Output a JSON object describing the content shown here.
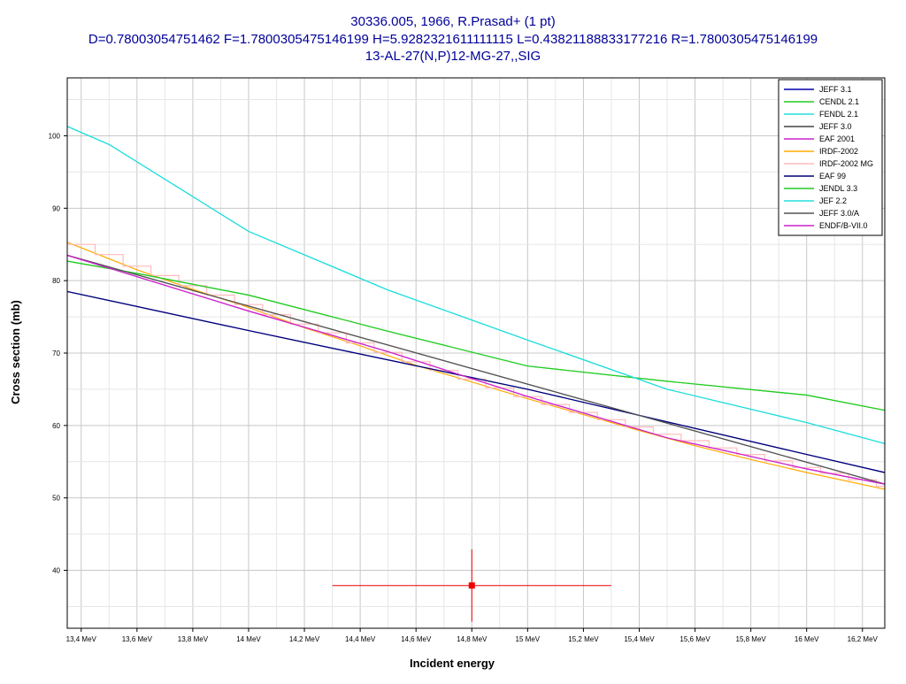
{
  "chart_data": {
    "type": "line",
    "title_lines": [
      "30336.005, 1966, R.Prasad+ (1 pt)",
      "D=0.78003054751462 F=1.7800305475146199 H=5.9282321611111115 L=0.43821188833177216 R=1.7800305475146199",
      "13-AL-27(N,P)12-MG-27,,SIG"
    ],
    "xlabel": "Incident energy",
    "ylabel": "Cross section (mb)",
    "xlim": [
      13.35,
      16.28
    ],
    "ylim": [
      32,
      108
    ],
    "x_unit": "MeV",
    "grid": true,
    "legend_position": "top-right",
    "x_ticks": [
      {
        "value": 13.4,
        "label": "13,4 MeV"
      },
      {
        "value": 13.6,
        "label": "13,6 MeV"
      },
      {
        "value": 13.8,
        "label": "13,8 MeV"
      },
      {
        "value": 14.0,
        "label": "14 MeV"
      },
      {
        "value": 14.2,
        "label": "14,2 MeV"
      },
      {
        "value": 14.4,
        "label": "14,4 MeV"
      },
      {
        "value": 14.6,
        "label": "14,6 MeV"
      },
      {
        "value": 14.8,
        "label": "14,8 MeV"
      },
      {
        "value": 15.0,
        "label": "15 MeV"
      },
      {
        "value": 15.2,
        "label": "15,2 MeV"
      },
      {
        "value": 15.4,
        "label": "15,4 MeV"
      },
      {
        "value": 15.6,
        "label": "15,6 MeV"
      },
      {
        "value": 15.8,
        "label": "15,8 MeV"
      },
      {
        "value": 16.0,
        "label": "16 MeV"
      },
      {
        "value": 16.2,
        "label": "16,2 MeV"
      }
    ],
    "y_ticks": [
      {
        "value": 40,
        "label": "40"
      },
      {
        "value": 50,
        "label": "50"
      },
      {
        "value": 60,
        "label": "60"
      },
      {
        "value": 70,
        "label": "70"
      },
      {
        "value": 80,
        "label": "80"
      },
      {
        "value": 90,
        "label": "90"
      },
      {
        "value": 100,
        "label": "100"
      }
    ],
    "series": [
      {
        "name": "JEFF 3.1",
        "color": "#0000aa",
        "step": false,
        "x": [
          13.35,
          14.0,
          15.0,
          16.0,
          16.28
        ],
        "y": [
          78.5,
          73.1,
          65.0,
          56.0,
          53.5
        ]
      },
      {
        "name": "CENDL 2.1",
        "color": "#22cc22",
        "step": false,
        "x": [
          13.35,
          13.6,
          14.0,
          14.5,
          15.0,
          15.5,
          16.0,
          16.28
        ],
        "y": [
          82.7,
          81.0,
          78.0,
          73.0,
          68.2,
          66.1,
          64.2,
          62.1
        ]
      },
      {
        "name": "FENDL 2.1",
        "color": "#22dddd",
        "step": false,
        "x": [
          13.35,
          13.5,
          14.0,
          14.5,
          15.0,
          15.5,
          16.0,
          16.28
        ],
        "y": [
          101.3,
          98.8,
          86.8,
          78.7,
          71.8,
          65.0,
          60.4,
          57.5
        ]
      },
      {
        "name": "JEFF 3.0",
        "color": "#444444",
        "step": false,
        "x": [
          13.35,
          16.28
        ],
        "y": [
          83.5,
          51.9
        ]
      },
      {
        "name": "EAF 2001",
        "color": "#cc22cc",
        "step": false,
        "x": [
          13.35,
          14.0,
          14.5,
          15.0,
          15.5,
          16.0,
          16.28
        ],
        "y": [
          83.5,
          75.8,
          70.2,
          64.0,
          58.3,
          54.0,
          51.9
        ]
      },
      {
        "name": "IRDF-2002",
        "color": "#ffaa00",
        "step": false,
        "x": [
          13.35,
          13.6,
          13.8,
          14.0,
          14.2,
          14.4,
          14.6,
          14.8,
          15.0,
          15.2,
          15.4,
          15.6,
          15.8,
          16.0,
          16.28
        ],
        "y": [
          85.3,
          81.5,
          78.8,
          76.3,
          73.5,
          71.0,
          68.3,
          66.0,
          63.7,
          61.5,
          59.3,
          57.2,
          55.3,
          53.5,
          51.2
        ]
      },
      {
        "name": "IRDF-2002 MG",
        "color": "#ffbbbb",
        "step": true,
        "x": [
          13.35,
          13.45,
          13.55,
          13.65,
          13.75,
          13.85,
          13.95,
          14.05,
          14.15,
          14.25,
          14.35,
          14.45,
          14.55,
          14.65,
          14.75,
          14.85,
          14.95,
          15.05,
          15.15,
          15.25,
          15.35,
          15.45,
          15.55,
          15.65,
          15.75,
          15.85,
          15.95,
          16.05,
          16.15,
          16.25
        ],
        "y": [
          85.0,
          83.6,
          82.0,
          80.7,
          79.3,
          78.0,
          76.7,
          75.3,
          74.0,
          72.8,
          71.4,
          70.1,
          68.8,
          67.6,
          66.4,
          65.2,
          64.0,
          62.9,
          61.8,
          60.8,
          59.8,
          58.8,
          57.9,
          56.9,
          56.0,
          55.1,
          54.2,
          53.4,
          52.5,
          51.6
        ]
      },
      {
        "name": "EAF 99",
        "color": "#000077",
        "step": false,
        "x": [
          13.35,
          14.0,
          15.0,
          16.0,
          16.28
        ],
        "y": [
          78.5,
          73.1,
          65.0,
          56.0,
          53.5
        ]
      },
      {
        "name": "JENDL 3.3",
        "color": "#22cc22",
        "step": false,
        "x": [
          13.35,
          13.6,
          14.0,
          14.5,
          15.0,
          15.5,
          16.0,
          16.28
        ],
        "y": [
          82.7,
          81.0,
          78.0,
          73.0,
          68.2,
          66.1,
          64.2,
          62.1
        ]
      },
      {
        "name": "JEF 2.2",
        "color": "#22dddd",
        "step": false,
        "x": [
          13.35,
          13.5,
          14.0,
          14.5,
          15.0,
          15.5,
          16.0,
          16.28
        ],
        "y": [
          101.3,
          98.8,
          86.8,
          78.7,
          71.8,
          65.0,
          60.4,
          57.5
        ]
      },
      {
        "name": "JEFF 3.0/A",
        "color": "#555555",
        "step": false,
        "x": [
          13.35,
          16.28
        ],
        "y": [
          83.5,
          51.9
        ]
      },
      {
        "name": "ENDF/B-VII.0",
        "color": "#cc22cc",
        "step": false,
        "x": [
          13.35,
          14.0,
          14.5,
          15.0,
          15.5,
          16.0,
          16.28
        ],
        "y": [
          83.5,
          75.8,
          70.2,
          64.0,
          58.3,
          54.0,
          51.9
        ]
      }
    ],
    "experimental_points": [
      {
        "x": 14.8,
        "y": 37.9,
        "x_err": 0.5,
        "y_err": 5.0,
        "color": "#ee0000"
      }
    ]
  }
}
